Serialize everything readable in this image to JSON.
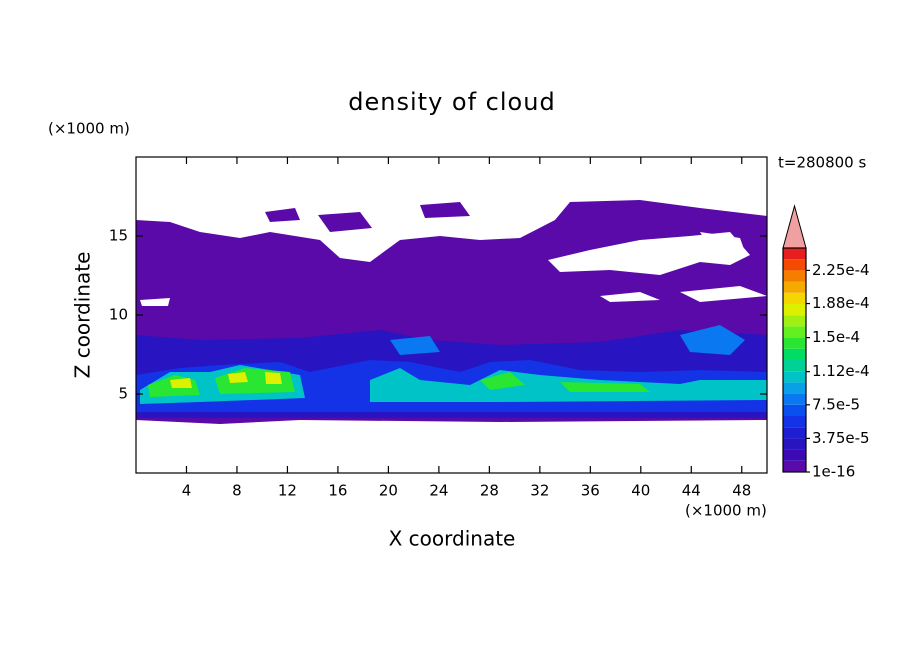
{
  "chart_data": {
    "type": "contour",
    "title": "density of cloud",
    "time_label": "t=280800 s",
    "xlabel": "X coordinate",
    "ylabel": "Z coordinate",
    "xunit": "(×1000 m)",
    "yunit": "(×1000 m)",
    "xlim": [
      0,
      50
    ],
    "ylim": [
      0,
      20
    ],
    "xticks": [
      4,
      8,
      12,
      16,
      20,
      24,
      28,
      32,
      36,
      40,
      44,
      48
    ],
    "yticks": [
      5,
      10,
      15
    ],
    "colorbar": {
      "lim": [
        1e-16,
        0.00025
      ],
      "extend_color": "#f0a0a0",
      "ticks": [
        {
          "value": 1e-16,
          "label": "1e-16"
        },
        {
          "value": 3.75e-05,
          "label": "3.75e-5"
        },
        {
          "value": 7.5e-05,
          "label": "7.5e-5"
        },
        {
          "value": 0.000112,
          "label": "1.12e-4"
        },
        {
          "value": 0.00015,
          "label": "1.5e-4"
        },
        {
          "value": 0.000188,
          "label": "1.88e-4"
        },
        {
          "value": 0.000225,
          "label": "2.25e-4"
        }
      ],
      "colors": [
        "#5a0aa8",
        "#3c0ab4",
        "#2814c0",
        "#1e1ed2",
        "#1432e6",
        "#0a50f0",
        "#0a78f0",
        "#0aa0e6",
        "#00c3c8",
        "#00d296",
        "#00dc64",
        "#28e632",
        "#64f01e",
        "#a0f014",
        "#dcf000",
        "#f5d700",
        "#f5aa00",
        "#f57d00",
        "#f54b00",
        "#e61e1e"
      ]
    }
  }
}
